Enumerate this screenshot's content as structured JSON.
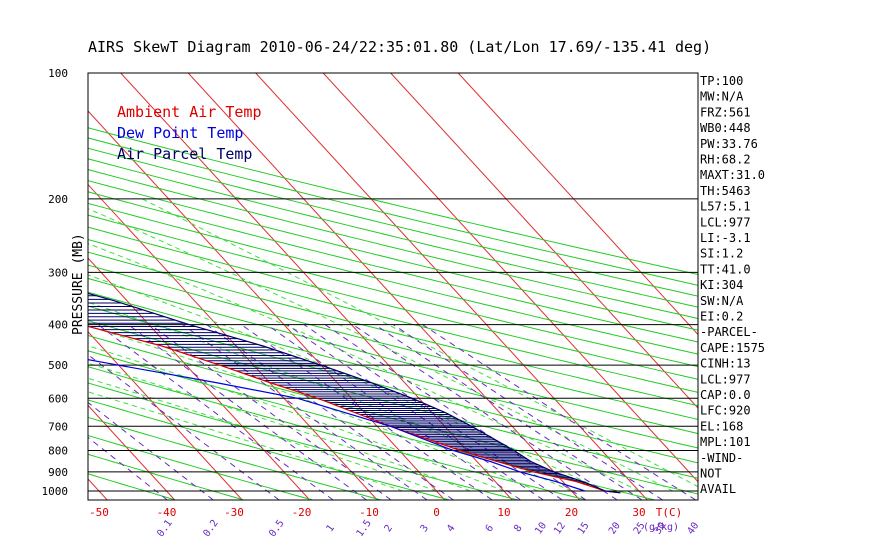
{
  "chart_data": {
    "type": "line",
    "title": "AIRS SkewT Diagram 2010-06-24/22:35:01.80 (Lat/Lon 17.69/-135.41 deg)",
    "ylabel": "PRESSURE (MB)",
    "xlabel": "T(C)",
    "mixing_ratio_unit": "(g/kg)",
    "log_pressure_axis": true,
    "pressure_ticks": [
      100,
      200,
      300,
      400,
      500,
      600,
      700,
      800,
      900,
      1000
    ],
    "top_temp_ticks": [
      -120,
      -110,
      -100,
      -90,
      -80,
      -70,
      -60,
      -50,
      -40
    ],
    "bottom_temp_ticks": [
      -50,
      -40,
      -30,
      -20,
      -10,
      0,
      10,
      20,
      30
    ],
    "mixing_ratio_ticks": [
      "0.1",
      "0.2",
      "0.5",
      "1",
      "1.5",
      "2",
      "3",
      "4",
      "6",
      "8",
      "10",
      "12",
      "15",
      "20",
      "25",
      "30",
      "40"
    ],
    "temp_range_bottom": [
      -53,
      37
    ],
    "pressure_range": [
      100,
      1050
    ],
    "series": [
      {
        "name": "Ambient Air Temp",
        "color": "#dd0000",
        "points": [
          [
            100,
            -76
          ],
          [
            160,
            -77
          ],
          [
            180,
            -75
          ],
          [
            200,
            -70
          ],
          [
            250,
            -58
          ],
          [
            300,
            -48
          ],
          [
            350,
            -38
          ],
          [
            400,
            -30
          ],
          [
            450,
            -21
          ],
          [
            500,
            -15
          ],
          [
            550,
            -10
          ],
          [
            600,
            -5
          ],
          [
            700,
            2
          ],
          [
            800,
            9
          ],
          [
            850,
            13
          ],
          [
            900,
            17
          ],
          [
            950,
            22
          ],
          [
            1000,
            25
          ],
          [
            1010,
            27
          ]
        ]
      },
      {
        "name": "Dew Point Temp",
        "color": "#0000dd",
        "points": [
          [
            100,
            -78
          ],
          [
            150,
            -82
          ],
          [
            200,
            -88
          ],
          [
            250,
            -95
          ],
          [
            300,
            -90
          ],
          [
            350,
            -76
          ],
          [
            400,
            -60
          ],
          [
            450,
            -43
          ],
          [
            500,
            -30
          ],
          [
            550,
            -18
          ],
          [
            600,
            -8
          ],
          [
            700,
            2
          ],
          [
            800,
            8
          ],
          [
            850,
            12
          ],
          [
            900,
            15
          ],
          [
            950,
            19
          ],
          [
            1000,
            22
          ]
        ]
      },
      {
        "name": "Air Parcel Temp",
        "color": "#000066",
        "points": [
          [
            100,
            -88
          ],
          [
            150,
            -75
          ],
          [
            180,
            -68
          ],
          [
            200,
            -62
          ],
          [
            250,
            -45
          ],
          [
            300,
            -33
          ],
          [
            350,
            -22
          ],
          [
            400,
            -14
          ],
          [
            450,
            -6
          ],
          [
            500,
            0
          ],
          [
            550,
            5
          ],
          [
            600,
            9
          ],
          [
            650,
            12
          ],
          [
            700,
            14
          ],
          [
            800,
            17
          ],
          [
            850,
            18
          ],
          [
            900,
            20
          ],
          [
            950,
            23
          ],
          [
            1000,
            25
          ],
          [
            1010,
            27
          ]
        ]
      }
    ],
    "legend": [
      "Ambient Air Temp",
      "Dew Point Temp",
      "Air Parcel Temp"
    ],
    "legend_placement": "top-left",
    "indices": [
      "TP:100",
      "MW:N/A",
      "FRZ:561",
      "WB0:448",
      "PW:33.76",
      "RH:68.2",
      "MAXT:31.0",
      "TH:5463",
      "L57:5.1",
      "LCL:977",
      "LI:-3.1",
      "SI:1.2",
      "TT:41.0",
      "KI:304",
      "SW:N/A",
      "EI:0.2",
      "-PARCEL-",
      "CAPE:1575",
      "CINH:13",
      "LCL:977",
      "CAP:0.0",
      "LFC:920",
      "EL:168",
      "MPL:101",
      "-WIND-",
      "NOT",
      "AVAIL"
    ]
  }
}
